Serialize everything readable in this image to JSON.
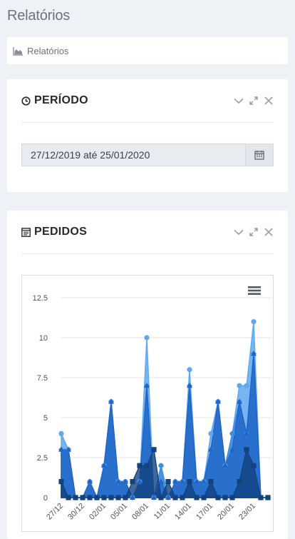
{
  "page": {
    "title": "Relatórios"
  },
  "breadcrumb": {
    "label": "Relatórios"
  },
  "periodo": {
    "title": "PERÍODO",
    "date_range": "27/12/2019 até 25/01/2020"
  },
  "pedidos": {
    "title": "PEDIDOS"
  },
  "colors": {
    "series_light": "#5ea8f0",
    "series_mid": "#3d8ae0",
    "series_dark": "#1f64c6",
    "series_navy": "#13427f"
  },
  "chart_data": {
    "type": "area",
    "x": [
      "27/12",
      "28/12",
      "29/12",
      "30/12",
      "31/12",
      "01/01",
      "02/01",
      "03/01",
      "04/01",
      "05/01",
      "06/01",
      "07/01",
      "08/01",
      "09/01",
      "10/01",
      "11/01",
      "12/01",
      "13/01",
      "14/01",
      "15/01",
      "16/01",
      "17/01",
      "18/01",
      "19/01",
      "20/01",
      "21/01",
      "22/01",
      "23/01",
      "24/01",
      "25/01"
    ],
    "x_tick_labels": [
      "27/12",
      "30/12",
      "02/01",
      "05/01",
      "08/01",
      "11/01",
      "14/01",
      "17/01",
      "20/01",
      "23/01"
    ],
    "ylim": [
      0,
      12.5
    ],
    "y_ticks": [
      "0",
      "2.5",
      "5",
      "7.5",
      "10",
      "12.5"
    ],
    "series": [
      {
        "values": [
          4,
          3,
          0,
          0,
          1,
          0,
          2,
          6,
          1,
          1,
          0,
          1,
          10,
          0,
          2,
          0,
          1,
          1,
          8,
          1,
          1,
          4,
          6,
          2,
          4,
          7,
          7,
          11,
          0,
          0
        ]
      },
      {
        "values": [
          3,
          3,
          0,
          0,
          1,
          0,
          2,
          6,
          1,
          1,
          0,
          1,
          7,
          0,
          2,
          0,
          1,
          1,
          7,
          1,
          1,
          3,
          6,
          2,
          4,
          6,
          4,
          9,
          0,
          0
        ]
      },
      {
        "values": [
          3,
          3,
          0,
          0,
          1,
          0,
          2,
          6,
          1,
          1,
          0,
          1,
          7,
          0,
          1,
          0,
          1,
          1,
          7,
          1,
          1,
          3,
          6,
          2,
          3,
          6,
          4,
          9,
          0,
          0
        ]
      },
      {
        "values": [
          1,
          0,
          0,
          0,
          0,
          0,
          0,
          0,
          0,
          0,
          1,
          2,
          2,
          3,
          0,
          1,
          0,
          0,
          1,
          0,
          0,
          1,
          0,
          0,
          0,
          1,
          3,
          2,
          0,
          0
        ]
      }
    ],
    "grid": true,
    "legend": "none"
  }
}
